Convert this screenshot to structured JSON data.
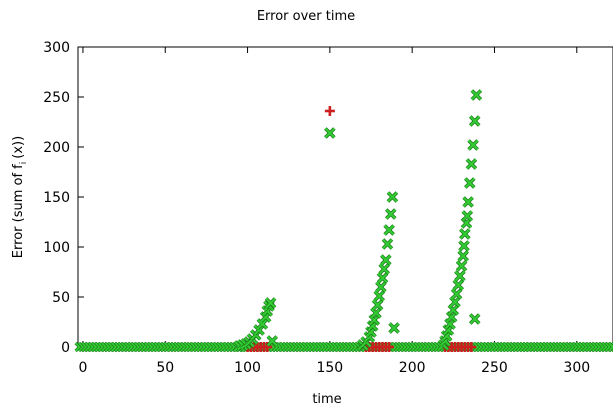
{
  "chart_data": {
    "type": "scatter",
    "title": "Error over time",
    "xlabel": "time",
    "ylabel_main": "Error (sum of f",
    "ylabel_sub": "i",
    "ylabel_end": "(x))",
    "xlim": [
      -3,
      322
    ],
    "ylim": [
      0,
      300
    ],
    "x_ticks": [
      0,
      50,
      100,
      150,
      200,
      250,
      300
    ],
    "y_ticks": [
      0,
      50,
      100,
      150,
      200,
      250,
      300
    ],
    "grid": false,
    "legend": "none",
    "series": [
      {
        "marker": "plus",
        "color": "#cc1f1f",
        "points": [
          [
            150,
            236
          ],
          [
            100,
            0
          ],
          [
            102,
            0
          ],
          [
            104,
            0
          ],
          [
            106,
            0
          ],
          [
            108,
            0
          ],
          [
            110,
            0
          ],
          [
            112,
            0
          ],
          [
            172,
            0
          ],
          [
            174,
            0
          ],
          [
            176,
            0
          ],
          [
            178,
            0
          ],
          [
            180,
            0
          ],
          [
            182,
            0
          ],
          [
            184,
            0
          ],
          [
            186,
            0
          ],
          [
            220,
            0
          ],
          [
            222,
            0
          ],
          [
            224,
            0
          ],
          [
            226,
            0
          ],
          [
            228,
            0
          ],
          [
            230,
            0
          ],
          [
            232,
            0
          ],
          [
            234,
            0
          ],
          [
            236,
            0
          ]
        ]
      },
      {
        "marker": "cross",
        "color": "#33cc33",
        "points": [
          [
            150,
            214
          ],
          [
            115,
            6
          ],
          [
            189,
            19
          ],
          [
            238,
            28
          ],
          [
            95,
            1
          ],
          [
            97,
            2
          ],
          [
            99,
            3
          ],
          [
            101,
            5
          ],
          [
            103,
            8
          ],
          [
            105,
            12
          ],
          [
            107,
            17
          ],
          [
            109,
            23
          ],
          [
            111,
            30
          ],
          [
            112,
            36
          ],
          [
            113,
            41
          ],
          [
            114,
            44
          ],
          [
            170,
            2
          ],
          [
            172,
            5
          ],
          [
            174,
            10
          ],
          [
            175,
            15
          ],
          [
            176,
            21
          ],
          [
            177,
            27
          ],
          [
            178,
            34
          ],
          [
            179,
            42
          ],
          [
            180,
            51
          ],
          [
            181,
            60
          ],
          [
            182,
            69
          ],
          [
            183,
            78
          ],
          [
            184,
            87
          ],
          [
            185,
            103
          ],
          [
            186,
            117
          ],
          [
            187,
            133
          ],
          [
            188,
            150
          ],
          [
            219,
            2
          ],
          [
            220,
            6
          ],
          [
            221,
            11
          ],
          [
            222,
            17
          ],
          [
            223,
            23
          ],
          [
            224,
            30
          ],
          [
            225,
            37
          ],
          [
            226,
            45
          ],
          [
            227,
            53
          ],
          [
            228,
            62
          ],
          [
            229,
            71
          ],
          [
            230,
            81
          ],
          [
            231,
            91
          ],
          [
            231.5,
            101
          ],
          [
            232,
            113
          ],
          [
            233,
            124
          ],
          [
            233.5,
            131
          ],
          [
            234,
            145
          ],
          [
            235,
            164
          ],
          [
            236,
            183
          ],
          [
            237,
            202
          ],
          [
            238,
            226
          ],
          [
            239,
            252
          ]
        ]
      }
    ]
  }
}
